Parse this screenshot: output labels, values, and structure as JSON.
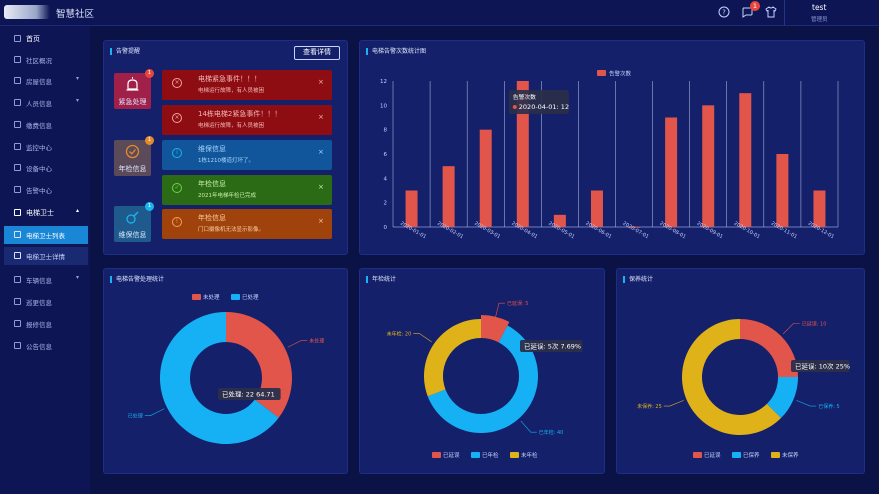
{
  "app": {
    "title": "智慧社区"
  },
  "header": {
    "message_badge": "1",
    "user_name": "test",
    "user_role": "管理员"
  },
  "sidebar": {
    "home": "首页",
    "items": [
      "社区概况",
      "房屋信息",
      "人员信息",
      "缴费信息",
      "监控中心",
      "设备中心",
      "告警中心"
    ],
    "open_group": "电梯卫士",
    "sub_items": [
      "电梯卫士列表",
      "电梯卫士详情"
    ],
    "after_items": [
      "车辆信息",
      "巡更信息",
      "报修信息",
      "公告信息"
    ]
  },
  "alarm_panel": {
    "title": "告警提醒",
    "detail_button": "查看详情",
    "categories": [
      {
        "label": "紧急处理",
        "badge": "1"
      },
      {
        "label": "年检信息",
        "badge": "1"
      },
      {
        "label": "维保信息",
        "badge": "1"
      }
    ],
    "alerts": [
      {
        "title": "电梯紧急事件！！！",
        "sub": "电梯运行故障，有人员被困"
      },
      {
        "title": "14栋电梯2紧急事件！！！",
        "sub": "电梯运行故障，有人员被困"
      },
      {
        "title": "维保信息",
        "sub": "1栋1210楼道灯坏了。"
      },
      {
        "title": "年检信息",
        "sub": "2021年电梯年检已完成"
      },
      {
        "title": "年检信息",
        "sub": "门口摄像机无法显示影像。"
      }
    ]
  },
  "colors": {
    "red": "#e2554a",
    "blue": "#16b1f5",
    "yellow": "#e0b21a",
    "accent": "#19b4f0"
  },
  "chart_data": [
    {
      "type": "bar",
      "title": "电梯告警次数统计图",
      "legend": [
        "告警次数"
      ],
      "categories": [
        "2020-01-01",
        "2020-02-01",
        "2020-03-01",
        "2020-04-01",
        "2020-05-01",
        "2020-06-01",
        "2020-07-01",
        "2020-08-01",
        "2020-09-01",
        "2020-10-01",
        "2020-11-01",
        "2020-12-01"
      ],
      "values": [
        3,
        5,
        8,
        12,
        1,
        3,
        0,
        9,
        10,
        11,
        6,
        3
      ],
      "yticks": [
        "0",
        "2",
        "4",
        "6",
        "8",
        "10",
        "12"
      ],
      "ylim": [
        0,
        12
      ],
      "tooltip": {
        "title": "告警次数",
        "text": "2020-04-01: 12"
      }
    },
    {
      "type": "pie",
      "title": "电梯告警处理统计",
      "legend": [
        "未处理",
        "已处理"
      ],
      "values": [
        35.29,
        64.71
      ],
      "slice_labels": [
        "未处理",
        "已处理"
      ],
      "tooltip": "已处理: 22 64.71"
    },
    {
      "type": "pie",
      "title": "年检统计",
      "legend": [
        "已延误",
        "已年检",
        "未年检"
      ],
      "values": [
        5,
        40,
        20
      ],
      "slice_labels": [
        "已延误: 5",
        "已年检: 40",
        "未年检: 20"
      ],
      "tooltip": "已延误: 5次 7.69%"
    },
    {
      "type": "pie",
      "title": "保养统计",
      "legend": [
        "已延误",
        "已保养",
        "未保养"
      ],
      "values": [
        10,
        5,
        25
      ],
      "slice_labels": [
        "已延误: 10",
        "已保养: 5",
        "未保养: 25"
      ],
      "tooltip": "已延误: 10次 25%"
    }
  ]
}
